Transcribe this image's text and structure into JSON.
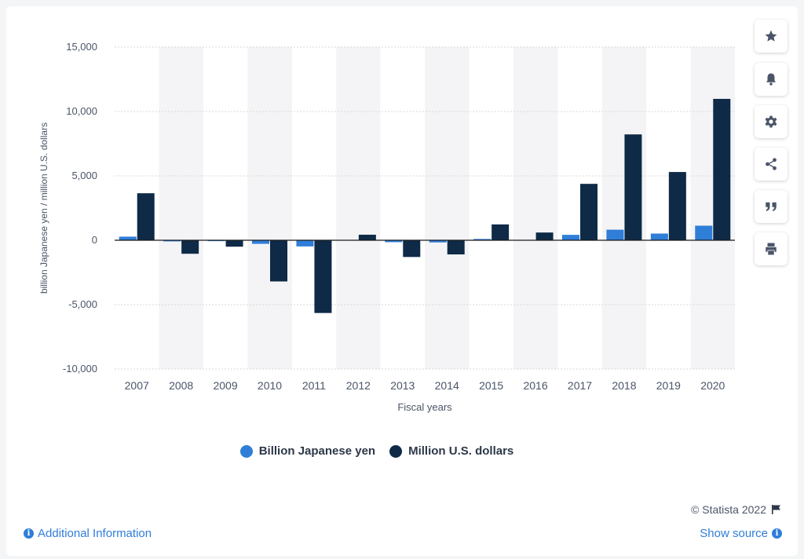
{
  "chart_data": {
    "type": "bar",
    "title": "",
    "xlabel": "Fiscal years",
    "ylabel": "billion Japanese yen / million U.S. dollars",
    "ylim": [
      -10000,
      15000
    ],
    "yticks": [
      15000,
      10000,
      5000,
      0,
      -5000,
      -10000
    ],
    "ytick_labels": [
      "15,000",
      "10,000",
      "5,000",
      "0",
      "-5,000",
      "-10,000"
    ],
    "categories": [
      "2007",
      "2008",
      "2009",
      "2010",
      "2011",
      "2012",
      "2013",
      "2014",
      "2015",
      "2016",
      "2017",
      "2018",
      "2019",
      "2020"
    ],
    "series": [
      {
        "name": "Billion Japanese yen",
        "color": "#2f7ed8",
        "values": [
          280,
          -90,
          -70,
          -280,
          -480,
          0,
          -150,
          -170,
          100,
          0,
          420,
          820,
          520,
          1130
        ]
      },
      {
        "name": "Million U.S. dollars",
        "color": "#0e2a47",
        "values": [
          3650,
          -1050,
          -500,
          -3200,
          -5650,
          430,
          -1300,
          -1100,
          1230,
          600,
          4380,
          8220,
          5300,
          10980
        ]
      }
    ],
    "grid": true,
    "legend_position": "bottom-center"
  },
  "credit": "© Statista 2022",
  "footer": {
    "additional_info": "Additional Information",
    "show_source": "Show source"
  },
  "toolbar": [
    "star-icon",
    "bell-icon",
    "gear-icon",
    "share-icon",
    "quote-icon",
    "print-icon"
  ]
}
